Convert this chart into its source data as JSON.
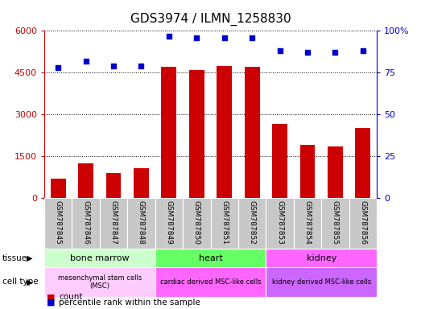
{
  "title": "GDS3974 / ILMN_1258830",
  "samples": [
    "GSM787845",
    "GSM787846",
    "GSM787847",
    "GSM787848",
    "GSM787849",
    "GSM787850",
    "GSM787851",
    "GSM787852",
    "GSM787853",
    "GSM787854",
    "GSM787855",
    "GSM787856"
  ],
  "counts": [
    700,
    1250,
    900,
    1050,
    4700,
    4600,
    4750,
    4700,
    2650,
    1900,
    1850,
    2500
  ],
  "percentile_ranks": [
    78,
    82,
    79,
    79,
    97,
    96,
    96,
    96,
    88,
    87,
    87,
    88
  ],
  "ylim_left": [
    0,
    6000
  ],
  "ylim_right": [
    0,
    100
  ],
  "yticks_left": [
    0,
    1500,
    3000,
    4500,
    6000
  ],
  "yticks_right": [
    0,
    25,
    50,
    75,
    100
  ],
  "tissue_groups": [
    {
      "label": "bone marrow",
      "start": 0,
      "end": 4,
      "color": "#ccffcc"
    },
    {
      "label": "heart",
      "start": 4,
      "end": 8,
      "color": "#66ff66"
    },
    {
      "label": "kidney",
      "start": 8,
      "end": 12,
      "color": "#ff66ff"
    }
  ],
  "celltype_groups": [
    {
      "label": "mesenchymal stem cells\n(MSC)",
      "start": 0,
      "end": 4,
      "color": "#ffccff"
    },
    {
      "label": "cardiac derived MSC-like cells",
      "start": 4,
      "end": 8,
      "color": "#ff66ff"
    },
    {
      "label": "kidney derived MSC-like cells",
      "start": 8,
      "end": 12,
      "color": "#cc66ff"
    }
  ],
  "bar_color": "#cc0000",
  "dot_color": "#0000cc",
  "background_color": "#ffffff",
  "grid_color": "#000000",
  "tick_color_left": "#cc0000",
  "tick_color_right": "#0000cc",
  "legend_count_color": "#cc0000",
  "legend_pct_color": "#0000cc",
  "sample_box_color": "#c8c8c8",
  "sample_box_border": "#ffffff"
}
